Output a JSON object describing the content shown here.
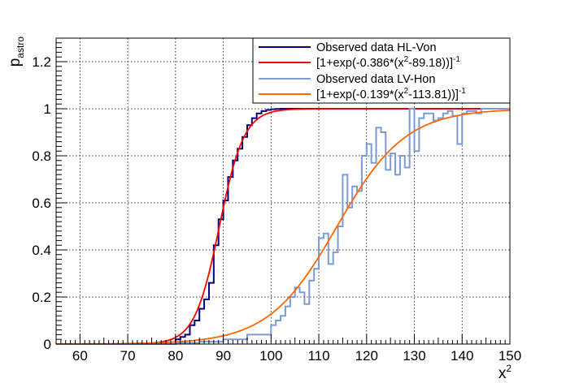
{
  "chart_data": {
    "type": "line",
    "title": "",
    "xlabel": "x",
    "xlabel_sup": "2",
    "ylabel": "p",
    "ylabel_sub": "astro",
    "xlim": [
      55,
      150
    ],
    "ylim": [
      0,
      1.3
    ],
    "x_ticks": [
      60,
      70,
      80,
      90,
      100,
      110,
      120,
      130,
      140,
      150
    ],
    "y_ticks": [
      0,
      0.2,
      0.4,
      0.6,
      0.8,
      1,
      1.2
    ],
    "y_tick_labels": [
      "0",
      "0.2",
      "0.4",
      "0.6",
      "0.8",
      "1",
      "1.2"
    ],
    "grid": true,
    "legend_position": "top-right",
    "series": [
      {
        "name": "Observed data HL-Von",
        "kind": "step",
        "color": "#000080",
        "x": [
          55,
          80,
          81,
          82,
          83,
          84,
          85,
          86,
          87,
          88,
          89,
          90,
          91,
          92,
          93,
          94,
          95,
          96,
          97,
          98,
          99,
          100,
          101,
          102,
          103,
          150
        ],
        "y": [
          0.0,
          0.02,
          0.03,
          0.04,
          0.08,
          0.1,
          0.15,
          0.19,
          0.26,
          0.42,
          0.53,
          0.61,
          0.71,
          0.78,
          0.83,
          0.88,
          0.93,
          0.96,
          0.98,
          0.99,
          0.995,
          0.998,
          0.999,
          1.0,
          1.0,
          1.0
        ]
      },
      {
        "name": "[1+exp(-0.386*(x",
        "name_sup": "2",
        "name_tail": "-89.18))]",
        "name_tail_sup": "-1",
        "kind": "logistic",
        "color": "#ff0000",
        "k": 0.386,
        "x0": 89.18
      },
      {
        "name": "Observed data LV-Hon",
        "kind": "step",
        "color": "#7b9bd6",
        "x": [
          55,
          80,
          85,
          90,
          95,
          100,
          101,
          102,
          103,
          104,
          105,
          106,
          107,
          108,
          109,
          110,
          111,
          112,
          113,
          114,
          115,
          116,
          117,
          118,
          119,
          120,
          121,
          122,
          123,
          124,
          125,
          126,
          127,
          128,
          129,
          130,
          131,
          132,
          133,
          134,
          135,
          136,
          137,
          138,
          139,
          140,
          141,
          142,
          143,
          144,
          145,
          150
        ],
        "y": [
          0.0,
          0.005,
          0.01,
          0.02,
          0.04,
          0.08,
          0.1,
          0.12,
          0.16,
          0.2,
          0.24,
          0.22,
          0.17,
          0.27,
          0.32,
          0.45,
          0.47,
          0.34,
          0.39,
          0.5,
          0.72,
          0.58,
          0.67,
          0.65,
          0.8,
          0.85,
          0.77,
          0.92,
          0.9,
          0.74,
          0.81,
          0.72,
          0.8,
          0.75,
          1.0,
          0.82,
          0.96,
          0.98,
          0.98,
          0.95,
          0.96,
          0.98,
          0.99,
          0.97,
          0.85,
          0.98,
          0.99,
          0.99,
          0.98,
          1.0,
          1.0,
          1.0
        ]
      },
      {
        "name": "[1+exp(-0.139*(x",
        "name_sup": "2",
        "name_tail": "-113.81))]",
        "name_tail_sup": "-1",
        "kind": "logistic",
        "color": "#ff6600",
        "k": 0.139,
        "x0": 113.81
      }
    ]
  }
}
